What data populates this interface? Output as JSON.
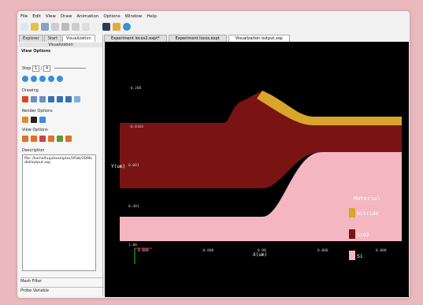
{
  "menu": [
    "File",
    "Edit",
    "View",
    "Draw",
    "Animation",
    "Options",
    "Window",
    "Help"
  ],
  "left_panel": {
    "tabs": [
      "Explorer",
      "Start",
      "Visualization"
    ],
    "title": "Visualization",
    "header": "View Options",
    "step": {
      "label": "Step",
      "current": "1",
      "separator": "/",
      "total": "4"
    },
    "sections": [
      "Drawing",
      "Render Options",
      "View Options",
      "Description"
    ],
    "description": "file: /home/hup/examples/VFab/2DModel/output.xsp",
    "footer": [
      "Mesh Filter",
      "Probe Variable"
    ]
  },
  "doc_tabs": [
    "Experiment locos2.expt*",
    "Experiment locos.expt",
    "Visualization output.xsp"
  ],
  "plot": {
    "y_label": "Y(um)",
    "x_label": "X(um)",
    "yticks": [
      "-0.288",
      "-0.0164",
      "0.001",
      "0.481",
      "1.00"
    ],
    "xticks": [
      "0.000",
      "-0.000",
      "0.00",
      "0.000",
      "0.000"
    ],
    "legend": {
      "title": "Material",
      "items": [
        {
          "name": "Nitride",
          "color": "#d9a52b"
        },
        {
          "name": "SiO2",
          "color": "#7a1414"
        },
        {
          "name": "Si",
          "color": "#f4b6c0"
        }
      ]
    }
  }
}
